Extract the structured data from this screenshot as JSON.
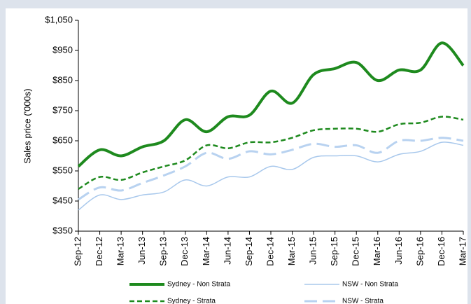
{
  "chart_data": {
    "type": "line",
    "y_label": "Sales  price ('000s)",
    "categories": [
      "Sep-12",
      "Dec-12",
      "Mar-13",
      "Jun-13",
      "Sep-13",
      "Dec-13",
      "Mar-14",
      "Jun-14",
      "Sep-14",
      "Dec-14",
      "Mar-15",
      "Jun-15",
      "Sep-15",
      "Dec-15",
      "Mar-16",
      "Jun-16",
      "Sep-16",
      "Dec-16",
      "Mar-17"
    ],
    "series": [
      {
        "name": "Sydney - Non Strata",
        "color": "#1e8a1e",
        "dash": "solid",
        "width": 4,
        "values": [
          565,
          620,
          600,
          630,
          650,
          720,
          680,
          730,
          735,
          815,
          775,
          870,
          890,
          910,
          850,
          885,
          885,
          975,
          900
        ]
      },
      {
        "name": "NSW - Non Strata",
        "color": "#a8c8ec",
        "dash": "solid",
        "width": 1.5,
        "values": [
          420,
          470,
          455,
          470,
          480,
          520,
          500,
          530,
          530,
          565,
          555,
          595,
          600,
          600,
          580,
          605,
          615,
          645,
          635
        ]
      },
      {
        "name": "Sydney - Strata",
        "color": "#1e8a1e",
        "dash": "dashed",
        "width": 2.5,
        "values": [
          490,
          530,
          520,
          545,
          565,
          585,
          635,
          625,
          645,
          645,
          660,
          685,
          690,
          690,
          680,
          705,
          710,
          730,
          720
        ]
      },
      {
        "name": "NSW - Strata",
        "color": "#b8d2f0",
        "dash": "longdash",
        "width": 3,
        "values": [
          455,
          495,
          485,
          510,
          535,
          565,
          610,
          590,
          615,
          605,
          620,
          640,
          630,
          635,
          610,
          650,
          650,
          660,
          650
        ]
      }
    ],
    "ylim": [
      350,
      1050
    ],
    "yticks": [
      {
        "value": 350,
        "label": "$350"
      },
      {
        "value": 450,
        "label": "$450"
      },
      {
        "value": 550,
        "label": "$550"
      },
      {
        "value": 650,
        "label": "$650"
      },
      {
        "value": 750,
        "label": "$750"
      },
      {
        "value": 850,
        "label": "$850"
      },
      {
        "value": 950,
        "label": "$950"
      },
      {
        "value": 1050,
        "label": "$1,050"
      }
    ],
    "grid": false,
    "legend": "bottom"
  }
}
